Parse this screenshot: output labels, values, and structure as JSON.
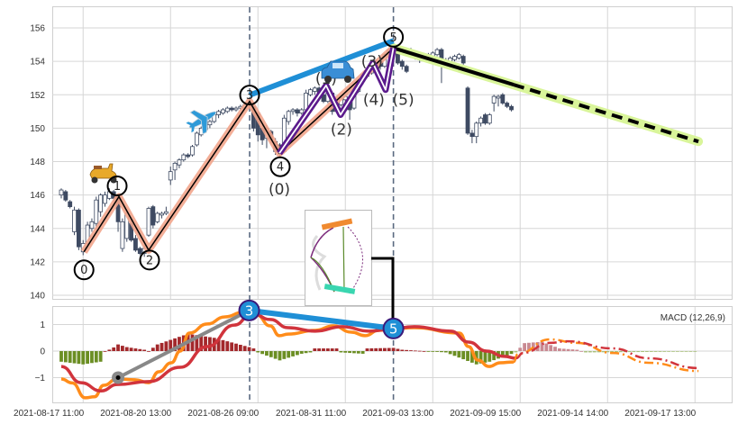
{
  "chart_data": [
    {
      "type": "candlestick",
      "title": "",
      "ylim": [
        139.8,
        157.3
      ],
      "y_ticks": [
        "140",
        "142",
        "144",
        "146",
        "148",
        "150",
        "152",
        "154",
        "156"
      ],
      "x_tick_labels": [
        "2021-08-17 11:00",
        "2021-08-20 13:00",
        "2021-08-26 09:00",
        "2021-08-31 11:00",
        "2021-09-03 13:00",
        "2021-09-09 15:00",
        "2021-09-14 14:00",
        "2021-09-17 13:00"
      ],
      "x_tick_index": [
        5,
        25,
        45,
        65,
        85,
        105,
        125,
        145
      ],
      "grid": true,
      "candle_fields": [
        "bar",
        "open",
        "high",
        "low",
        "close"
      ],
      "candles": [
        [
          0,
          146.0,
          146.4,
          145.8,
          146.3
        ],
        [
          1,
          146.2,
          146.3,
          145.6,
          145.7
        ],
        [
          2,
          145.6,
          145.7,
          145.2,
          145.3
        ],
        [
          3,
          143.8,
          145.3,
          143.6,
          145.1
        ],
        [
          4,
          145.1,
          145.2,
          142.7,
          142.9
        ],
        [
          5,
          142.6,
          143.3,
          142.4,
          143.1
        ],
        [
          6,
          143.1,
          144.4,
          143.0,
          144.2
        ],
        [
          7,
          144.0,
          144.6,
          143.8,
          144.4
        ],
        [
          8,
          144.3,
          145.9,
          143.9,
          145.7
        ],
        [
          9,
          145.0,
          146.1,
          144.7,
          146.0
        ],
        [
          10,
          145.5,
          146.2,
          145.3,
          146.0
        ],
        [
          11,
          145.8,
          146.4,
          145.7,
          146.2
        ],
        [
          12,
          146.2,
          146.3,
          145.6,
          145.8
        ],
        [
          13,
          146.0,
          146.1,
          143.8,
          144.4
        ],
        [
          14,
          142.8,
          144.6,
          142.6,
          144.4
        ],
        [
          15,
          143.4,
          145.0,
          143.2,
          144.9
        ],
        [
          16,
          144.3,
          144.6,
          143.2,
          143.3
        ],
        [
          17,
          143.4,
          143.6,
          142.6,
          142.7
        ],
        [
          18,
          142.8,
          142.9,
          142.4,
          142.5
        ],
        [
          19,
          142.5,
          143.0,
          142.3,
          142.8
        ],
        [
          20,
          143.6,
          145.3,
          143.5,
          145.2
        ],
        [
          21,
          145.3,
          145.4,
          144.0,
          144.2
        ],
        [
          22,
          144.4,
          145.0,
          144.3,
          144.9
        ],
        [
          23,
          144.8,
          145.0,
          144.6,
          144.9
        ],
        [
          24,
          144.9,
          145.3,
          144.8,
          145.0
        ],
        [
          25,
          146.9,
          147.7,
          146.6,
          147.4
        ],
        [
          26,
          147.5,
          148.0,
          146.9,
          147.9
        ],
        [
          27,
          147.8,
          148.2,
          147.6,
          148.1
        ],
        [
          28,
          148.1,
          148.5,
          148.0,
          148.4
        ],
        [
          29,
          148.4,
          148.5,
          148.2,
          148.3
        ],
        [
          30,
          148.4,
          149.0,
          148.3,
          148.9
        ],
        [
          31,
          149.0,
          149.8,
          148.9,
          149.7
        ],
        [
          32,
          149.6,
          150.1,
          149.5,
          150.0
        ],
        [
          33,
          149.9,
          150.3,
          149.7,
          150.2
        ],
        [
          34,
          150.2,
          150.5,
          150.0,
          150.4
        ],
        [
          35,
          150.4,
          150.9,
          150.3,
          150.8
        ],
        [
          36,
          150.8,
          151.1,
          150.6,
          151.0
        ],
        [
          37,
          150.9,
          151.2,
          150.8,
          151.1
        ],
        [
          38,
          151.0,
          151.3,
          150.9,
          151.2
        ],
        [
          39,
          151.2,
          151.3,
          151.0,
          151.1
        ],
        [
          40,
          151.1,
          151.3,
          151.0,
          151.2
        ],
        [
          41,
          151.2,
          151.4,
          151.1,
          151.3
        ],
        [
          42,
          151.2,
          151.5,
          151.1,
          151.4
        ],
        [
          43,
          151.3,
          151.6,
          151.2,
          151.5
        ],
        [
          44,
          151.3,
          151.4,
          149.8,
          150.0
        ],
        [
          45,
          150.9,
          151.0,
          149.2,
          149.6
        ],
        [
          46,
          150.0,
          150.2,
          149.0,
          149.3
        ],
        [
          47,
          149.4,
          150.2,
          148.8,
          150.0
        ],
        [
          48,
          149.8,
          149.9,
          149.1,
          149.3
        ],
        [
          49,
          149.2,
          149.4,
          148.4,
          148.6
        ],
        [
          50,
          149.0,
          149.1,
          148.3,
          148.5
        ],
        [
          51,
          148.6,
          150.8,
          148.5,
          150.6
        ],
        [
          52,
          150.4,
          151.1,
          150.2,
          151.0
        ],
        [
          53,
          151.0,
          151.2,
          150.8,
          151.1
        ],
        [
          54,
          151.1,
          151.2,
          150.7,
          150.9
        ],
        [
          55,
          150.9,
          151.2,
          150.8,
          151.1
        ],
        [
          56,
          151.1,
          152.3,
          151.0,
          152.1
        ],
        [
          57,
          152.0,
          152.4,
          151.9,
          152.3
        ],
        [
          58,
          152.2,
          152.5,
          152.0,
          152.4
        ],
        [
          59,
          152.4,
          152.5,
          151.9,
          152.0
        ],
        [
          60,
          152.0,
          152.1,
          151.5,
          151.6
        ],
        [
          61,
          151.6,
          152.2,
          151.5,
          152.1
        ],
        [
          62,
          152.1,
          152.2,
          150.8,
          151.0
        ],
        [
          63,
          151.0,
          151.6,
          150.9,
          151.5
        ],
        [
          64,
          151.4,
          151.9,
          151.3,
          151.8
        ],
        [
          65,
          151.7,
          152.0,
          151.5,
          151.9
        ],
        [
          66,
          151.7,
          151.8,
          150.5,
          151.1
        ],
        [
          67,
          151.2,
          152.3,
          151.1,
          152.2
        ],
        [
          68,
          152.2,
          152.9,
          152.1,
          152.8
        ],
        [
          69,
          152.8,
          153.3,
          152.6,
          153.2
        ],
        [
          70,
          153.1,
          153.5,
          153.0,
          153.4
        ],
        [
          71,
          153.3,
          153.9,
          153.2,
          153.8
        ],
        [
          72,
          153.8,
          154.1,
          153.6,
          154.0
        ],
        [
          73,
          154.0,
          154.1,
          153.5,
          153.7
        ],
        [
          74,
          153.7,
          154.5,
          153.6,
          154.4
        ],
        [
          75,
          154.4,
          154.8,
          154.3,
          154.7
        ],
        [
          76,
          154.6,
          155.0,
          154.5,
          154.8
        ],
        [
          77,
          154.6,
          154.7,
          153.8,
          153.9
        ],
        [
          78,
          154.0,
          154.1,
          153.5,
          153.7
        ],
        [
          79,
          153.7,
          153.8,
          153.3,
          153.4
        ],
        [
          80,
          154.4,
          154.8,
          154.2,
          154.6
        ],
        [
          81,
          154.5,
          154.6,
          154.1,
          154.2
        ],
        [
          82,
          154.3,
          154.4,
          153.9,
          154.1
        ],
        [
          83,
          154.1,
          154.4,
          154.0,
          154.3
        ],
        [
          84,
          154.4,
          154.5,
          154.1,
          154.2
        ],
        [
          85,
          154.2,
          154.6,
          154.1,
          154.5
        ],
        [
          86,
          154.4,
          154.8,
          154.3,
          154.7
        ],
        [
          87,
          154.7,
          154.8,
          152.7,
          154.0
        ],
        [
          88,
          154.0,
          154.2,
          153.6,
          153.9
        ],
        [
          89,
          153.9,
          154.3,
          153.8,
          154.2
        ],
        [
          90,
          154.1,
          154.4,
          154.0,
          154.3
        ],
        [
          91,
          154.2,
          154.5,
          154.1,
          154.4
        ],
        [
          92,
          154.3,
          154.4,
          153.8,
          153.9
        ],
        [
          93,
          152.4,
          152.5,
          149.6,
          149.7
        ],
        [
          94,
          149.7,
          149.9,
          149.1,
          149.5
        ],
        [
          95,
          149.5,
          150.4,
          149.1,
          150.3
        ],
        [
          96,
          150.3,
          150.7,
          150.1,
          150.6
        ],
        [
          97,
          150.8,
          150.9,
          150.2,
          150.3
        ],
        [
          98,
          150.3,
          150.9,
          150.2,
          150.8
        ],
        [
          99,
          151.5,
          152.0,
          151.0,
          151.9
        ],
        [
          100,
          151.8,
          152.0,
          151.3,
          151.9
        ],
        [
          101,
          152.0,
          152.1,
          151.4,
          151.5
        ],
        [
          102,
          151.5,
          151.6,
          151.2,
          151.3
        ],
        [
          103,
          151.3,
          151.4,
          151.0,
          151.1
        ]
      ],
      "waves": {
        "points": [
          {
            "label": "0",
            "bar": 5.2,
            "price": 142.6
          },
          {
            "label": "1",
            "bar": 13.2,
            "price": 145.9
          },
          {
            "label": "2",
            "bar": 20,
            "price": 142.7
          },
          {
            "label": "3",
            "bar": 43.1,
            "price": 151.6
          },
          {
            "label": "4",
            "bar": 49.9,
            "price": 148.5
          },
          {
            "label": "5",
            "bar": 76,
            "price": 154.8
          }
        ],
        "subwaves": [
          {
            "label": "(0)",
            "bar": 49.9,
            "price": 148.5
          },
          {
            "label": "(1)",
            "bar": 60.6,
            "price": 152.55
          },
          {
            "label": "(2)",
            "bar": 63.9,
            "price": 150.8
          },
          {
            "label": "(3)",
            "bar": 71.3,
            "price": 153.9
          },
          {
            "label": "(4)",
            "bar": 74.2,
            "price": 152.3
          },
          {
            "label": "(5)",
            "bar": 76,
            "price": 154.8
          }
        ],
        "projection": {
          "from": {
            "bar": 76,
            "price": 154.8
          },
          "solid_to": {
            "bar": 103.5,
            "price": 152.6
          },
          "to": {
            "bar": 145.8,
            "price": 149.2
          }
        },
        "icons": [
          "scooter-icon",
          "airplane-icon",
          "car-icon"
        ]
      },
      "colors": {
        "wave": "#f2a58c",
        "subwave": "#5b1a8c",
        "trend": "#1f8fd6",
        "projection": "#d9f59a",
        "down_candle": "#3e4a62"
      }
    },
    {
      "type": "macd",
      "label": "MACD (12,26,9)",
      "y_ticks": [
        "1",
        "0",
        "−1"
      ],
      "y_tick_values": [
        1,
        0,
        -1
      ],
      "ylim": [
        -1.95,
        1.7
      ],
      "macd": [
        [
          0,
          -1.05
        ],
        [
          2.5,
          -1.2
        ],
        [
          5.5,
          -1.76
        ],
        [
          7.6,
          -1.72
        ],
        [
          9.7,
          -1.29
        ],
        [
          12.8,
          -1.05
        ],
        [
          16.9,
          -1.08
        ],
        [
          20,
          -1.19
        ],
        [
          22.3,
          -0.78
        ],
        [
          25.2,
          -0.44
        ],
        [
          27.2,
          0
        ],
        [
          29.3,
          0.68
        ],
        [
          33.4,
          1.02
        ],
        [
          37.5,
          1.29
        ],
        [
          41.6,
          1.46
        ],
        [
          44.7,
          1.36
        ],
        [
          47.8,
          0.95
        ],
        [
          49.9,
          0.58
        ],
        [
          51.9,
          0.64
        ],
        [
          58.1,
          0.78
        ],
        [
          62.3,
          0.95
        ],
        [
          66.4,
          0.71
        ],
        [
          69.5,
          0.58
        ],
        [
          72.6,
          0.78
        ],
        [
          76,
          0.85
        ],
        [
          80.8,
          0.88
        ],
        [
          91.1,
          0.68
        ],
        [
          93.2,
          0.17
        ],
        [
          95.3,
          -0.34
        ],
        [
          97.9,
          -0.58
        ],
        [
          100.4,
          -0.44
        ],
        [
          103.5,
          -0.41
        ]
      ],
      "macd_projection": [
        [
          103.5,
          -0.41
        ],
        [
          104.5,
          -0.1
        ],
        [
          111.8,
          0.44
        ],
        [
          117.9,
          0.31
        ],
        [
          126.2,
          -0.07
        ],
        [
          134.4,
          -0.44
        ],
        [
          145.8,
          -0.75
        ]
      ],
      "signal": [
        [
          0,
          -0.58
        ],
        [
          4.5,
          -1.19
        ],
        [
          9.1,
          -1.5
        ],
        [
          12.8,
          -1.26
        ],
        [
          20,
          -1.15
        ],
        [
          27.2,
          -0.61
        ],
        [
          33.4,
          0.17
        ],
        [
          39.6,
          0.98
        ],
        [
          43.7,
          1.42
        ],
        [
          47.8,
          1.19
        ],
        [
          51.9,
          0.88
        ],
        [
          58.1,
          0.75
        ],
        [
          64.3,
          0.92
        ],
        [
          70.5,
          0.75
        ],
        [
          74.6,
          0.81
        ],
        [
          80.8,
          0.92
        ],
        [
          89.1,
          0.75
        ],
        [
          93.2,
          0.34
        ],
        [
          97.3,
          0
        ],
        [
          101.4,
          -0.2
        ],
        [
          104.1,
          -0.27
        ]
      ],
      "signal_projection": [
        [
          104.1,
          -0.27
        ],
        [
          105.6,
          -0.07
        ],
        [
          111.8,
          0.31
        ],
        [
          115.9,
          0.37
        ],
        [
          126.2,
          0.1
        ],
        [
          134.4,
          -0.27
        ],
        [
          145.8,
          -0.64
        ]
      ],
      "histogram": [
        [
          0,
          -0.4
        ],
        [
          5,
          -0.5
        ],
        [
          9,
          -0.4
        ],
        [
          10,
          0
        ],
        [
          11.5,
          0.08
        ],
        [
          13,
          0.25
        ],
        [
          15,
          0.15
        ],
        [
          19,
          0.05
        ],
        [
          20,
          0
        ],
        [
          22,
          0.25
        ],
        [
          29,
          0.65
        ],
        [
          35,
          0.5
        ],
        [
          43,
          0.15
        ],
        [
          44,
          0.1
        ],
        [
          45,
          -0.05
        ],
        [
          50,
          -0.35
        ],
        [
          55,
          -0.1
        ],
        [
          57,
          -0.05
        ],
        [
          58,
          0.1
        ],
        [
          63,
          0.1
        ],
        [
          64,
          -0.05
        ],
        [
          69,
          -0.1
        ],
        [
          70,
          0.1
        ],
        [
          76,
          0.12
        ],
        [
          78,
          0.05
        ],
        [
          83,
          0
        ],
        [
          88,
          -0.05
        ],
        [
          95,
          -0.5
        ],
        [
          98,
          -0.4
        ],
        [
          104,
          -0.05
        ],
        [
          106,
          0.3
        ],
        [
          110,
          0.35
        ],
        [
          114,
          0.1
        ],
        [
          118,
          0.05
        ],
        [
          120,
          -0.05
        ],
        [
          145,
          -0.02
        ]
      ],
      "markers": [
        {
          "label": "3",
          "bar": 43,
          "value": 1.53
        },
        {
          "label": "5",
          "bar": 76,
          "value": 0.85
        }
      ],
      "anchor": {
        "bar": 13,
        "value": -1.0
      },
      "colors": {
        "macd": "#ff8c1a",
        "signal": "#d1343c",
        "hist_pos": "#a3282b",
        "hist_neg": "#6b8e23",
        "marker": "#1f8fd6"
      }
    }
  ]
}
